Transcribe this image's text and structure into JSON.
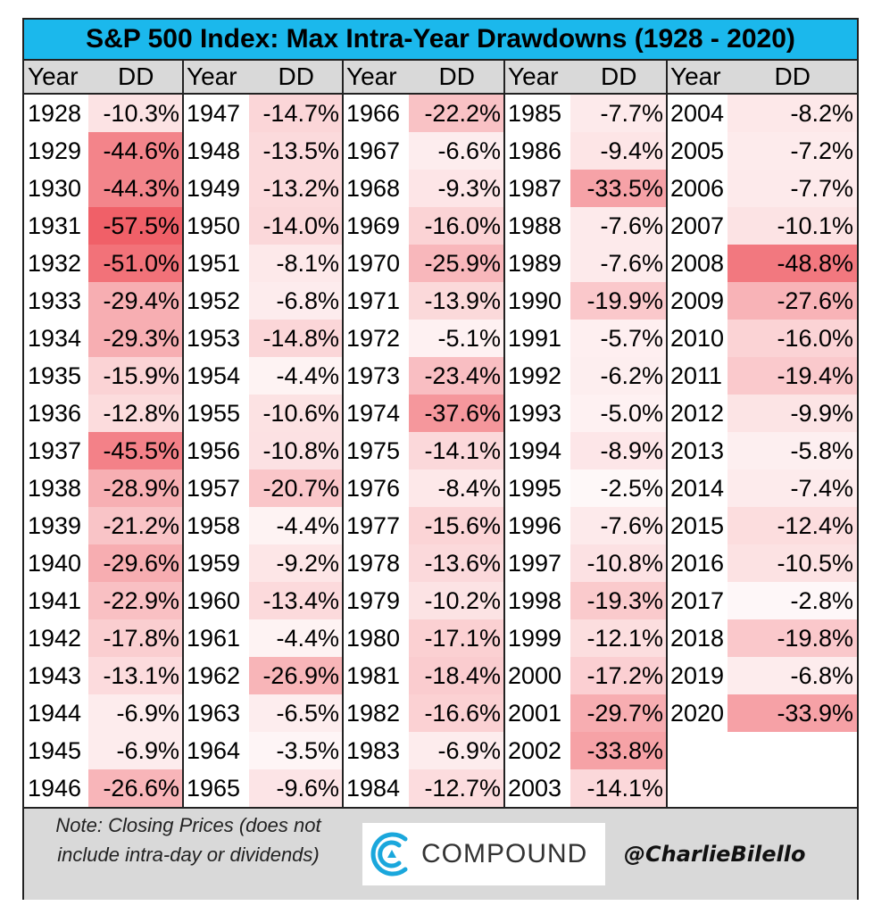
{
  "chart_data": {
    "type": "table",
    "title": "S&P 500 Index: Max Intra-Year Drawdowns (1928 - 2020)",
    "column_headers": [
      "Year",
      "DD"
    ],
    "columns": [
      {
        "years": [
          "1928",
          "1929",
          "1930",
          "1931",
          "1932",
          "1933",
          "1934",
          "1935",
          "1936",
          "1937",
          "1938",
          "1939",
          "1940",
          "1941",
          "1942",
          "1943",
          "1944",
          "1945",
          "1946"
        ],
        "dd": [
          "-10.3%",
          "-44.6%",
          "-44.3%",
          "-57.5%",
          "-51.0%",
          "-29.4%",
          "-29.3%",
          "-15.9%",
          "-12.8%",
          "-45.5%",
          "-28.9%",
          "-21.2%",
          "-29.6%",
          "-22.9%",
          "-17.8%",
          "-13.1%",
          "-6.9%",
          "-6.9%",
          "-26.6%"
        ]
      },
      {
        "years": [
          "1947",
          "1948",
          "1949",
          "1950",
          "1951",
          "1952",
          "1953",
          "1954",
          "1955",
          "1956",
          "1957",
          "1958",
          "1959",
          "1960",
          "1961",
          "1962",
          "1963",
          "1964",
          "1965"
        ],
        "dd": [
          "-14.7%",
          "-13.5%",
          "-13.2%",
          "-14.0%",
          "-8.1%",
          "-6.8%",
          "-14.8%",
          "-4.4%",
          "-10.6%",
          "-10.8%",
          "-20.7%",
          "-4.4%",
          "-9.2%",
          "-13.4%",
          "-4.4%",
          "-26.9%",
          "-6.5%",
          "-3.5%",
          "-9.6%"
        ]
      },
      {
        "years": [
          "1966",
          "1967",
          "1968",
          "1969",
          "1970",
          "1971",
          "1972",
          "1973",
          "1974",
          "1975",
          "1976",
          "1977",
          "1978",
          "1979",
          "1980",
          "1981",
          "1982",
          "1983",
          "1984"
        ],
        "dd": [
          "-22.2%",
          "-6.6%",
          "-9.3%",
          "-16.0%",
          "-25.9%",
          "-13.9%",
          "-5.1%",
          "-23.4%",
          "-37.6%",
          "-14.1%",
          "-8.4%",
          "-15.6%",
          "-13.6%",
          "-10.2%",
          "-17.1%",
          "-18.4%",
          "-16.6%",
          "-6.9%",
          "-12.7%"
        ]
      },
      {
        "years": [
          "1985",
          "1986",
          "1987",
          "1988",
          "1989",
          "1990",
          "1991",
          "1992",
          "1993",
          "1994",
          "1995",
          "1996",
          "1997",
          "1998",
          "1999",
          "2000",
          "2001",
          "2002",
          "2003"
        ],
        "dd": [
          "-7.7%",
          "-9.4%",
          "-33.5%",
          "-7.6%",
          "-7.6%",
          "-19.9%",
          "-5.7%",
          "-6.2%",
          "-5.0%",
          "-8.9%",
          "-2.5%",
          "-7.6%",
          "-10.8%",
          "-19.3%",
          "-12.1%",
          "-17.2%",
          "-29.7%",
          "-33.8%",
          "-14.1%"
        ]
      },
      {
        "years": [
          "2004",
          "2005",
          "2006",
          "2007",
          "2008",
          "2009",
          "2010",
          "2011",
          "2012",
          "2013",
          "2014",
          "2015",
          "2016",
          "2017",
          "2018",
          "2019",
          "2020"
        ],
        "dd": [
          "-8.2%",
          "-7.2%",
          "-7.7%",
          "-10.1%",
          "-48.8%",
          "-27.6%",
          "-16.0%",
          "-19.4%",
          "-9.9%",
          "-5.8%",
          "-7.4%",
          "-12.4%",
          "-10.5%",
          "-2.8%",
          "-19.8%",
          "-6.8%",
          "-33.9%"
        ]
      }
    ],
    "heat_colors": {
      "low": "#ffffff",
      "high": "#f06068"
    }
  },
  "footer": {
    "note": "Note: Closing Prices (does not include intra-day or dividends)",
    "logo_text": "COMPOUND",
    "handle": "@CharlieBilello"
  },
  "colors": {
    "title_bg": "#1bb8ec",
    "header_bg": "#d9d9d9",
    "footer_bg": "#d9d9d9",
    "logo_blue": "#1aa7dc"
  }
}
